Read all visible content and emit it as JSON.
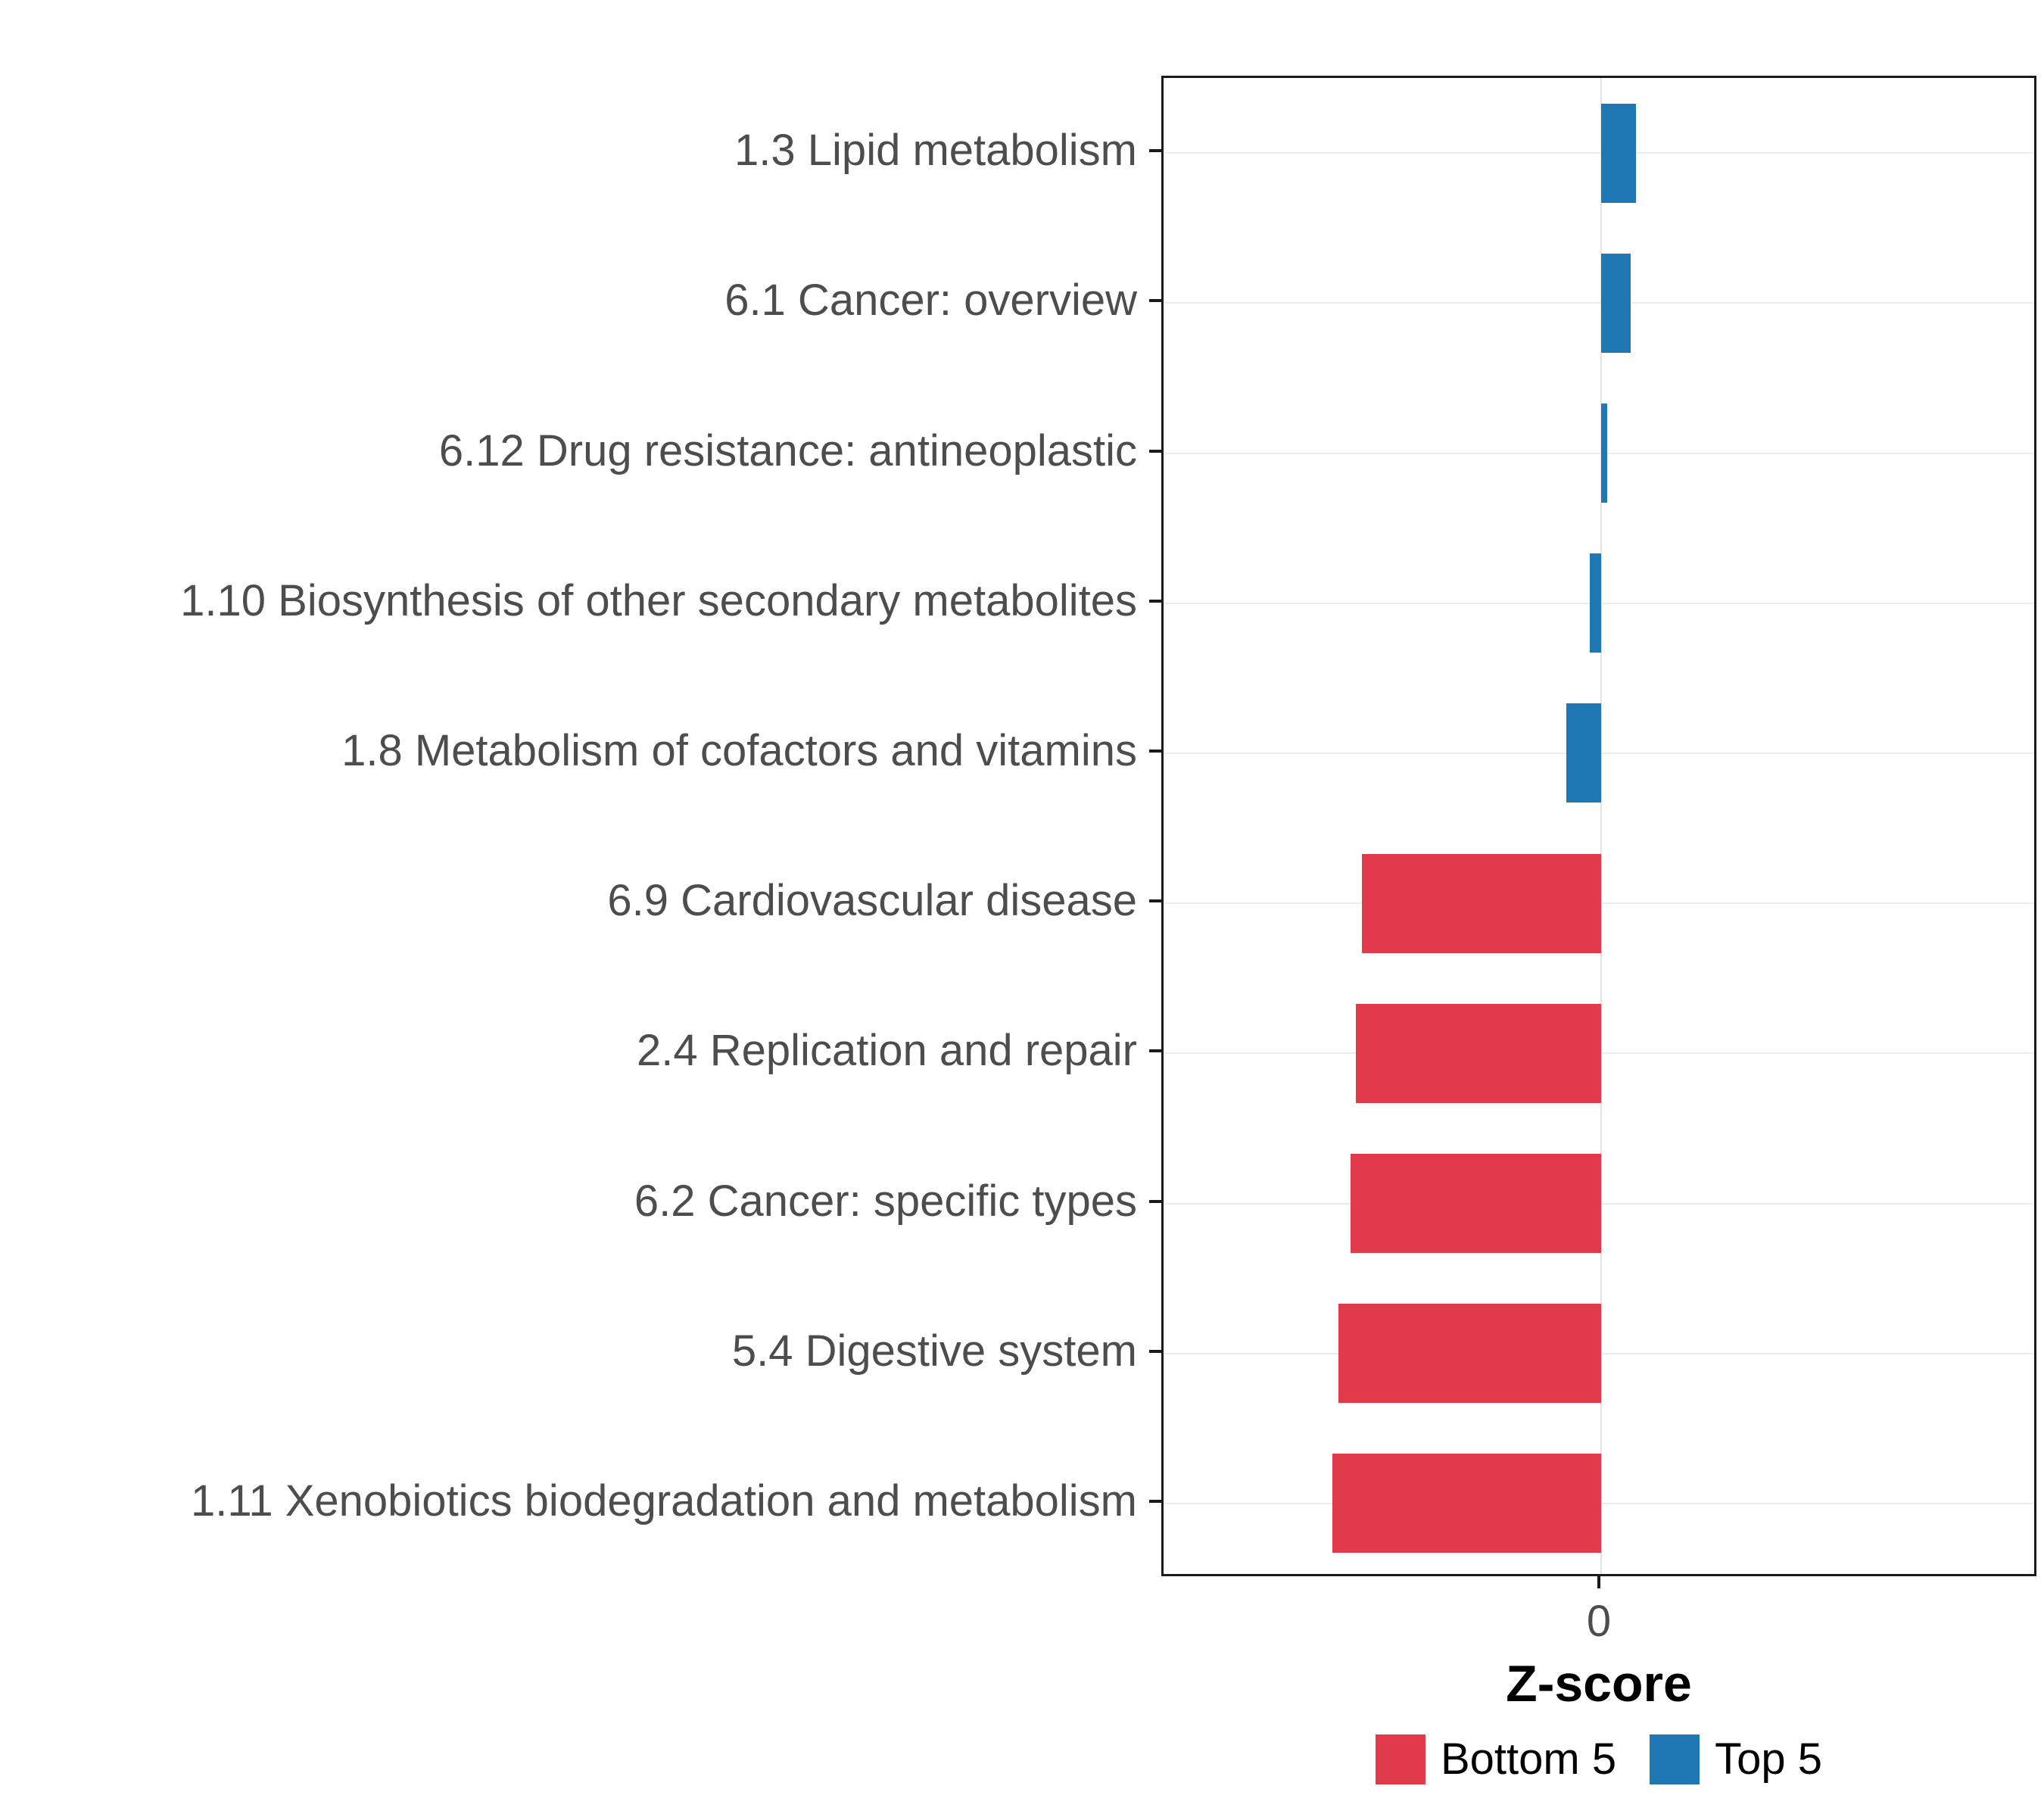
{
  "chart_data": {
    "type": "bar",
    "orientation": "horizontal",
    "title": "",
    "xlabel": "Z-score",
    "ylabel": "",
    "xlim": [
      -0.75,
      0.75
    ],
    "x_ticks": [
      0
    ],
    "x_tick_labels": [
      "0"
    ],
    "grid": "major",
    "legend_position": "bottom",
    "bars": [
      {
        "label": "1.3 Lipid metabolism",
        "value": 0.06,
        "group": "Top 5"
      },
      {
        "label": "6.1 Cancer: overview",
        "value": 0.05,
        "group": "Top 5"
      },
      {
        "label": "6.12 Drug resistance: antineoplastic",
        "value": 0.01,
        "group": "Top 5"
      },
      {
        "label": "1.10 Biosynthesis of other secondary metabolites",
        "value": -0.02,
        "group": "Top 5"
      },
      {
        "label": "1.8 Metabolism of cofactors and vitamins",
        "value": -0.06,
        "group": "Top 5"
      },
      {
        "label": "6.9 Cardiovascular disease",
        "value": -0.41,
        "group": "Bottom 5"
      },
      {
        "label": "2.4 Replication and repair",
        "value": -0.42,
        "group": "Bottom 5"
      },
      {
        "label": "6.2 Cancer: specific types",
        "value": -0.43,
        "group": "Bottom 5"
      },
      {
        "label": "5.4 Digestive system",
        "value": -0.45,
        "group": "Bottom 5"
      },
      {
        "label": "1.11 Xenobiotics biodegradation and metabolism",
        "value": -0.46,
        "group": "Bottom 5"
      }
    ]
  },
  "legend": {
    "items": [
      {
        "label": "Bottom 5",
        "color": "#E13B4B"
      },
      {
        "label": "Top 5",
        "color": "#1F77B4"
      }
    ]
  },
  "colors": {
    "bottom5": "#E13B4B",
    "top5": "#1F77B4",
    "gridline_v": "#E4E4E4",
    "gridline_h": "#ECECEC",
    "axis_text": "#4D4D4D",
    "panel_border": "#1A1A1A"
  }
}
